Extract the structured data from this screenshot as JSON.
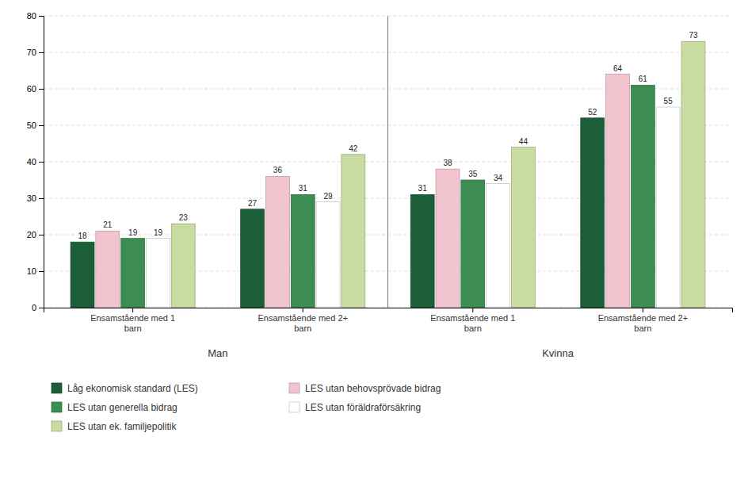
{
  "chart_data": {
    "type": "bar",
    "categories": [
      "Ensamstående med 1\nbarn",
      "Ensamstående med 2+\nbarn",
      "Ensamstående med 1\nbarn",
      "Ensamstående med 2+\nbarn"
    ],
    "series": [
      {
        "name": "Låg ekonomisk standard (LES)",
        "color": "#1b5e37",
        "values": [
          18,
          27,
          31,
          52
        ]
      },
      {
        "name": "LES utan behovsprövade bidrag",
        "color": "#f2c4cf",
        "values": [
          21,
          36,
          38,
          64
        ]
      },
      {
        "name": "LES utan generella bidrag",
        "color": "#3d8c52",
        "values": [
          19,
          31,
          35,
          61
        ]
      },
      {
        "name": "LES utan föräldraförsäkring",
        "color": "#ffffff",
        "values": [
          19,
          29,
          34,
          55
        ]
      },
      {
        "name": "LES utan ek. familjepolitik",
        "color": "#c8dba0",
        "values": [
          23,
          42,
          44,
          73
        ]
      }
    ],
    "annotations": [
      "Man",
      "Kvinna"
    ],
    "ylim": [
      0,
      80
    ],
    "yticks": [
      0,
      10,
      20,
      30,
      40,
      50,
      60,
      70,
      80
    ],
    "grid": true,
    "data_labels": true,
    "legend": "bottom"
  }
}
